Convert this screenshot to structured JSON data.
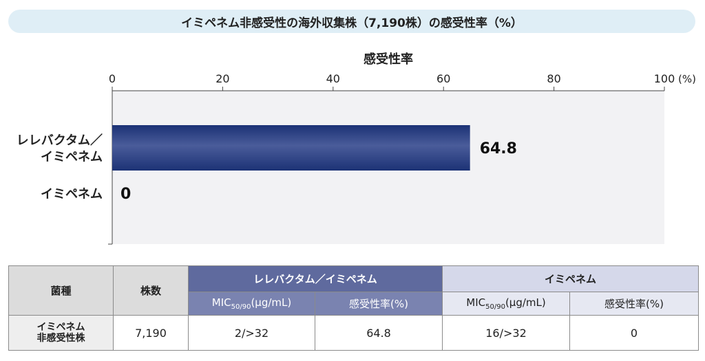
{
  "banner": {
    "title": "イミペネム非感受性の海外収集株（7,190株）の感受性率（%）"
  },
  "chart_data": {
    "type": "bar",
    "orientation": "horizontal",
    "title": "感受性率",
    "categories": [
      "レレバクタム／\nイミペネム",
      "イミペネム"
    ],
    "category_lines": [
      [
        "レレバクタム／",
        "イミペネム"
      ],
      [
        "イミペネム"
      ]
    ],
    "values": [
      64.8,
      0
    ],
    "value_labels": [
      "64.8",
      "0"
    ],
    "xlim": [
      0,
      100
    ],
    "xticks": [
      0,
      20,
      40,
      60,
      80,
      100
    ],
    "xtick_labels": [
      "0",
      "20",
      "40",
      "60",
      "80",
      "100"
    ],
    "unit_label": "(%)",
    "grid": false,
    "colors": {
      "bar": "#1c3275",
      "bar_light": "#4a5c9a",
      "plot_bg": "#f2f2f4"
    }
  },
  "table": {
    "col_strain": "菌種",
    "col_count": "株数",
    "group1": "レレバクタム／イミペネム",
    "group2": "イミペネム",
    "mic_prefix": "MIC",
    "mic_sub": "50/90",
    "mic_suffix": "(μg/mL)",
    "rate_header": "感受性率(%)",
    "row": {
      "strain_line1": "イミペネム",
      "strain_line2": "非感受性株",
      "count": "7,190",
      "mic1": "2/>32",
      "rate1": "64.8",
      "mic2": "16/>32",
      "rate2": "0"
    }
  }
}
